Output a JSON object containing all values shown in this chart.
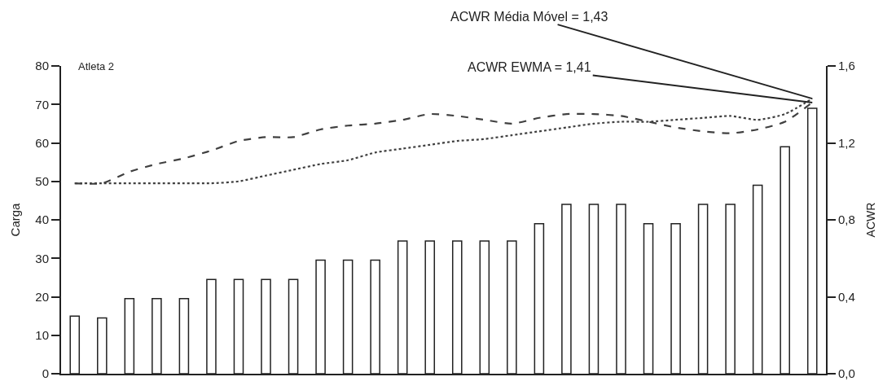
{
  "chart_data": {
    "type": "bar",
    "ylabel": "Carga",
    "y2label": "ACWR",
    "categories": [
      null,
      null,
      null,
      null,
      null,
      null,
      null,
      null,
      null,
      null,
      null,
      null,
      null,
      null,
      null,
      null,
      null,
      null,
      null,
      null,
      null,
      null,
      null,
      null,
      null,
      null,
      null,
      null
    ],
    "series": [
      {
        "color": "#ffffff",
        "values": [
          15,
          14.5,
          19.5,
          19.5,
          19.5,
          24.5,
          24.5,
          24.5,
          24.5,
          29.5,
          29.5,
          29.5,
          34.5,
          34.5,
          34.5,
          34.5,
          34.5,
          39,
          44,
          44,
          44,
          39,
          39,
          44,
          44,
          49,
          59,
          69
        ]
      },
      {
        "type": "line",
        "axis": "y2",
        "color": "#404040",
        "line_style": "dashed",
        "values": [
          0.99,
          0.99,
          1.05,
          1.09,
          1.12,
          1.16,
          1.21,
          1.23,
          1.23,
          1.27,
          1.29,
          1.3,
          1.32,
          1.35,
          1.34,
          1.32,
          1.3,
          1.33,
          1.35,
          1.35,
          1.34,
          1.31,
          1.28,
          1.26,
          1.25,
          1.27,
          1.31,
          1.41
        ]
      },
      {
        "type": "line",
        "axis": "y2",
        "color": "#404040",
        "line_style": "dotted",
        "values": [
          0.99,
          0.99,
          0.99,
          0.99,
          0.99,
          0.99,
          1.0,
          1.03,
          1.06,
          1.09,
          1.11,
          1.15,
          1.17,
          1.19,
          1.21,
          1.22,
          1.24,
          1.26,
          1.28,
          1.3,
          1.31,
          1.31,
          1.32,
          1.33,
          1.34,
          1.32,
          1.35,
          1.43
        ]
      }
    ],
    "ylim": [
      0,
      80
    ],
    "yticks": [
      0,
      10,
      20,
      30,
      40,
      50,
      60,
      70,
      80
    ],
    "y2lim": [
      0,
      1.6
    ],
    "y2ticks": [
      {
        "value": 0,
        "label": "0,0"
      },
      {
        "value": 0.4,
        "label": "0,4"
      },
      {
        "value": 0.8,
        "label": "0,8"
      },
      {
        "value": 1.2,
        "label": "1,2"
      },
      {
        "value": 1.6,
        "label": "1,6"
      }
    ],
    "marker": "none",
    "annotations": [
      "Atleta 2",
      "ACWR Média Móvel = 1,43",
      "ACWR EWMA = 1,41"
    ]
  }
}
